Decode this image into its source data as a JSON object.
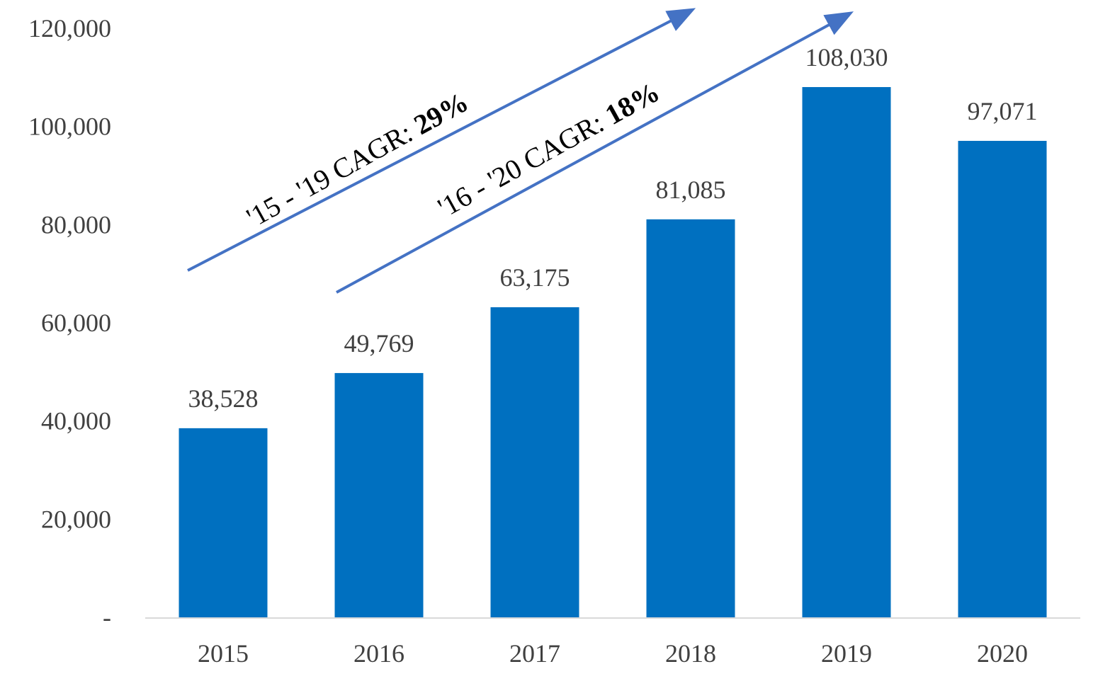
{
  "chart_data": {
    "type": "bar",
    "categories": [
      "2015",
      "2016",
      "2017",
      "2018",
      "2019",
      "2020"
    ],
    "values": [
      38528,
      49769,
      63175,
      81085,
      108030,
      97071
    ],
    "data_labels": [
      "38,528",
      "49,769",
      "63,175",
      "81,085",
      "108,030",
      "97,071"
    ],
    "y_ticks": [
      {
        "value": 0,
        "label": "-"
      },
      {
        "value": 20000,
        "label": "20,000"
      },
      {
        "value": 40000,
        "label": "40,000"
      },
      {
        "value": 60000,
        "label": "60,000"
      },
      {
        "value": 80000,
        "label": "80,000"
      },
      {
        "value": 100000,
        "label": "100,000"
      },
      {
        "value": 120000,
        "label": "120,000"
      }
    ],
    "ylim": [
      0,
      120000
    ],
    "title": "",
    "xlabel": "",
    "ylabel": "",
    "grid": false,
    "legend": "none",
    "colors": {
      "bar": "#0070C0",
      "arrow": "#4472C4",
      "axis": "#D9D9D9",
      "text": "#404040"
    },
    "annotations": [
      {
        "text": "'15 - '19 CAGR: ",
        "emphasis": "29%",
        "from_category": "2015",
        "to_category": "2019"
      },
      {
        "text": "'16 - '20 CAGR: ",
        "emphasis": "18%",
        "from_category": "2016",
        "to_category": "2020"
      }
    ]
  }
}
